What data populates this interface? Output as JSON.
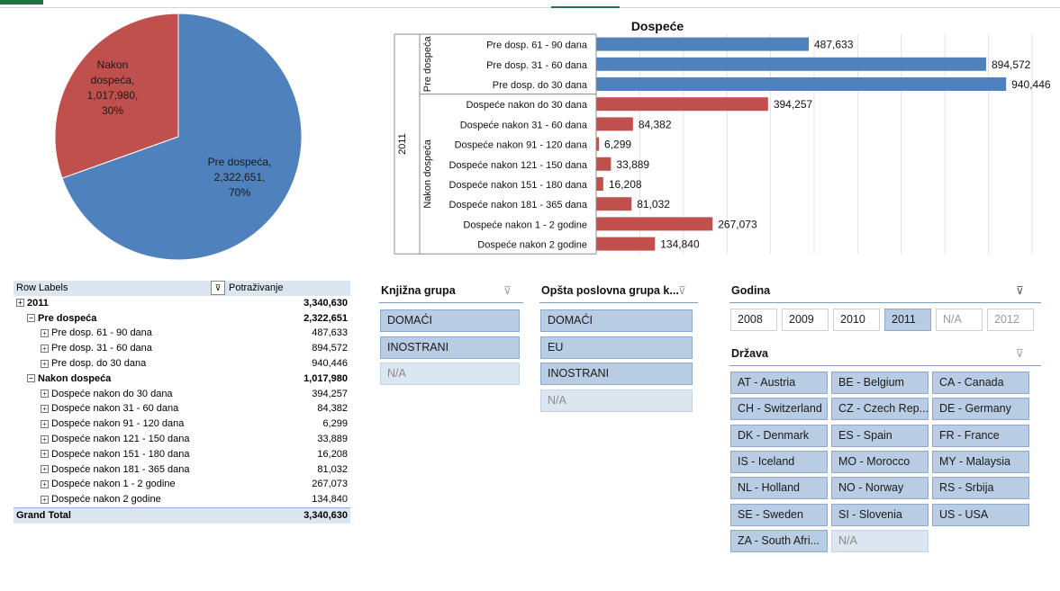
{
  "colors": {
    "pre": "#4f81bd",
    "nakon": "#c0504d",
    "slicer_sel": "#b8cce4",
    "slicer_na": "#dce6f1"
  },
  "pie": {
    "slices": [
      {
        "name": "Nakon dospeća",
        "value": 1017980,
        "value_label": "1,017,980,",
        "pct": "30%",
        "label_lines": [
          "Nakon",
          "dospeća,",
          "1,017,980,",
          "30%"
        ],
        "color": "#c0504d"
      },
      {
        "name": "Pre dospeća",
        "value": 2322651,
        "value_label": "2,322,651,",
        "pct": "70%",
        "label_lines": [
          "Pre dospeća,",
          "2,322,651,",
          "70%"
        ],
        "color": "#4f81bd"
      }
    ]
  },
  "chart_data": {
    "type": "bar",
    "orientation": "horizontal",
    "title": "Dospeće",
    "outer_group": "2011",
    "groups": [
      {
        "name": "Pre dospeća",
        "color": "#4f81bd"
      },
      {
        "name": "Nakon dospeća",
        "color": "#c0504d"
      }
    ],
    "categories": [
      "Pre dosp. 61 - 90 dana",
      "Pre dosp. 31 - 60 dana",
      "Pre dosp. do 30 dana",
      "Dospeće nakon do 30 dana",
      "Dospeće nakon 31 - 60 dana",
      "Dospeće nakon 91 - 120 dana",
      "Dospeće nakon 121 - 150 dana",
      "Dospeće nakon 151 - 180 dana",
      "Dospeće nakon 181 - 365 dana",
      "Dospeće nakon 1 - 2 godine",
      "Dospeće nakon 2 godine"
    ],
    "group_of": [
      0,
      0,
      0,
      1,
      1,
      1,
      1,
      1,
      1,
      1,
      1
    ],
    "values": [
      487633,
      894572,
      940446,
      394257,
      84382,
      6299,
      33889,
      16208,
      81032,
      267073,
      134840
    ],
    "labels": [
      "487,633",
      "894,572",
      "940,446",
      "394,257",
      "84,382",
      "6,299",
      "33,889",
      "16,208",
      "81,032",
      "267,073",
      "134,840"
    ],
    "xlim": [
      0,
      1000000
    ],
    "grid": true
  },
  "pivot": {
    "header_label": "Row Labels",
    "header_value": "Potraživanje",
    "rows": [
      {
        "label": "2011",
        "value": "3,340,630",
        "level": 0,
        "bold": true,
        "box": "+"
      },
      {
        "label": "Pre dospeća",
        "value": "2,322,651",
        "level": 1,
        "bold": true,
        "box": "−"
      },
      {
        "label": "Pre dosp. 61 - 90 dana",
        "value": "487,633",
        "level": 2,
        "bold": false,
        "box": "+"
      },
      {
        "label": "Pre dosp. 31 - 60 dana",
        "value": "894,572",
        "level": 2,
        "bold": false,
        "box": "+"
      },
      {
        "label": "Pre dosp. do 30 dana",
        "value": "940,446",
        "level": 2,
        "bold": false,
        "box": "+"
      },
      {
        "label": "Nakon dospeća",
        "value": "1,017,980",
        "level": 1,
        "bold": true,
        "box": "−"
      },
      {
        "label": "Dospeće nakon do 30 dana",
        "value": "394,257",
        "level": 2,
        "bold": false,
        "box": "+"
      },
      {
        "label": "Dospeće nakon 31 - 60 dana",
        "value": "84,382",
        "level": 2,
        "bold": false,
        "box": "+"
      },
      {
        "label": "Dospeće nakon 91 - 120 dana",
        "value": "6,299",
        "level": 2,
        "bold": false,
        "box": "+"
      },
      {
        "label": "Dospeće nakon 121 - 150 dana",
        "value": "33,889",
        "level": 2,
        "bold": false,
        "box": "+"
      },
      {
        "label": "Dospeće nakon 151 - 180 dana",
        "value": "16,208",
        "level": 2,
        "bold": false,
        "box": "+"
      },
      {
        "label": "Dospeće nakon 181 - 365 dana",
        "value": "81,032",
        "level": 2,
        "bold": false,
        "box": "+"
      },
      {
        "label": "Dospeće nakon 1 - 2 godine",
        "value": "267,073",
        "level": 2,
        "bold": false,
        "box": "+"
      },
      {
        "label": "Dospeće nakon 2 godine",
        "value": "134,840",
        "level": 2,
        "bold": false,
        "box": "+"
      }
    ],
    "total_label": "Grand Total",
    "total_value": "3,340,630"
  },
  "slicers": {
    "knjizna": {
      "title": "Knjižna grupa",
      "items": [
        {
          "label": "DOMAĆI",
          "na": false
        },
        {
          "label": "INOSTRANI",
          "na": false
        },
        {
          "label": "N/A",
          "na": true
        }
      ]
    },
    "opsta": {
      "title": "Opšta poslovna grupa k...",
      "items": [
        {
          "label": "DOMAĆI",
          "na": false
        },
        {
          "label": "EU",
          "na": false
        },
        {
          "label": "INOSTRANI",
          "na": false
        },
        {
          "label": "N/A",
          "na": true
        }
      ]
    },
    "godina": {
      "title": "Godina",
      "items": [
        {
          "label": "2008",
          "sel": false,
          "na": false
        },
        {
          "label": "2009",
          "sel": false,
          "na": false
        },
        {
          "label": "2010",
          "sel": false,
          "na": false
        },
        {
          "label": "2011",
          "sel": true,
          "na": false
        },
        {
          "label": "N/A",
          "sel": false,
          "na": true
        },
        {
          "label": "2012",
          "sel": false,
          "na": true
        }
      ]
    },
    "drzava": {
      "title": "Država",
      "items": [
        {
          "label": "AT - Austria",
          "na": false
        },
        {
          "label": "BE - Belgium",
          "na": false
        },
        {
          "label": "CA - Canada",
          "na": false
        },
        {
          "label": "CH - Switzerland",
          "na": false
        },
        {
          "label": "CZ - Czech Rep...",
          "na": false
        },
        {
          "label": "DE - Germany",
          "na": false
        },
        {
          "label": "DK - Denmark",
          "na": false
        },
        {
          "label": "ES - Spain",
          "na": false
        },
        {
          "label": "FR - France",
          "na": false
        },
        {
          "label": "IS - Iceland",
          "na": false
        },
        {
          "label": "MO - Morocco",
          "na": false
        },
        {
          "label": "MY - Malaysia",
          "na": false
        },
        {
          "label": "NL - Holland",
          "na": false
        },
        {
          "label": "NO - Norway",
          "na": false
        },
        {
          "label": "RS - Srbija",
          "na": false
        },
        {
          "label": "SE - Sweden",
          "na": false
        },
        {
          "label": "SI - Slovenia",
          "na": false
        },
        {
          "label": "US - USA",
          "na": false
        },
        {
          "label": "ZA - South Afri...",
          "na": false
        },
        {
          "label": "N/A",
          "na": true
        }
      ]
    }
  }
}
